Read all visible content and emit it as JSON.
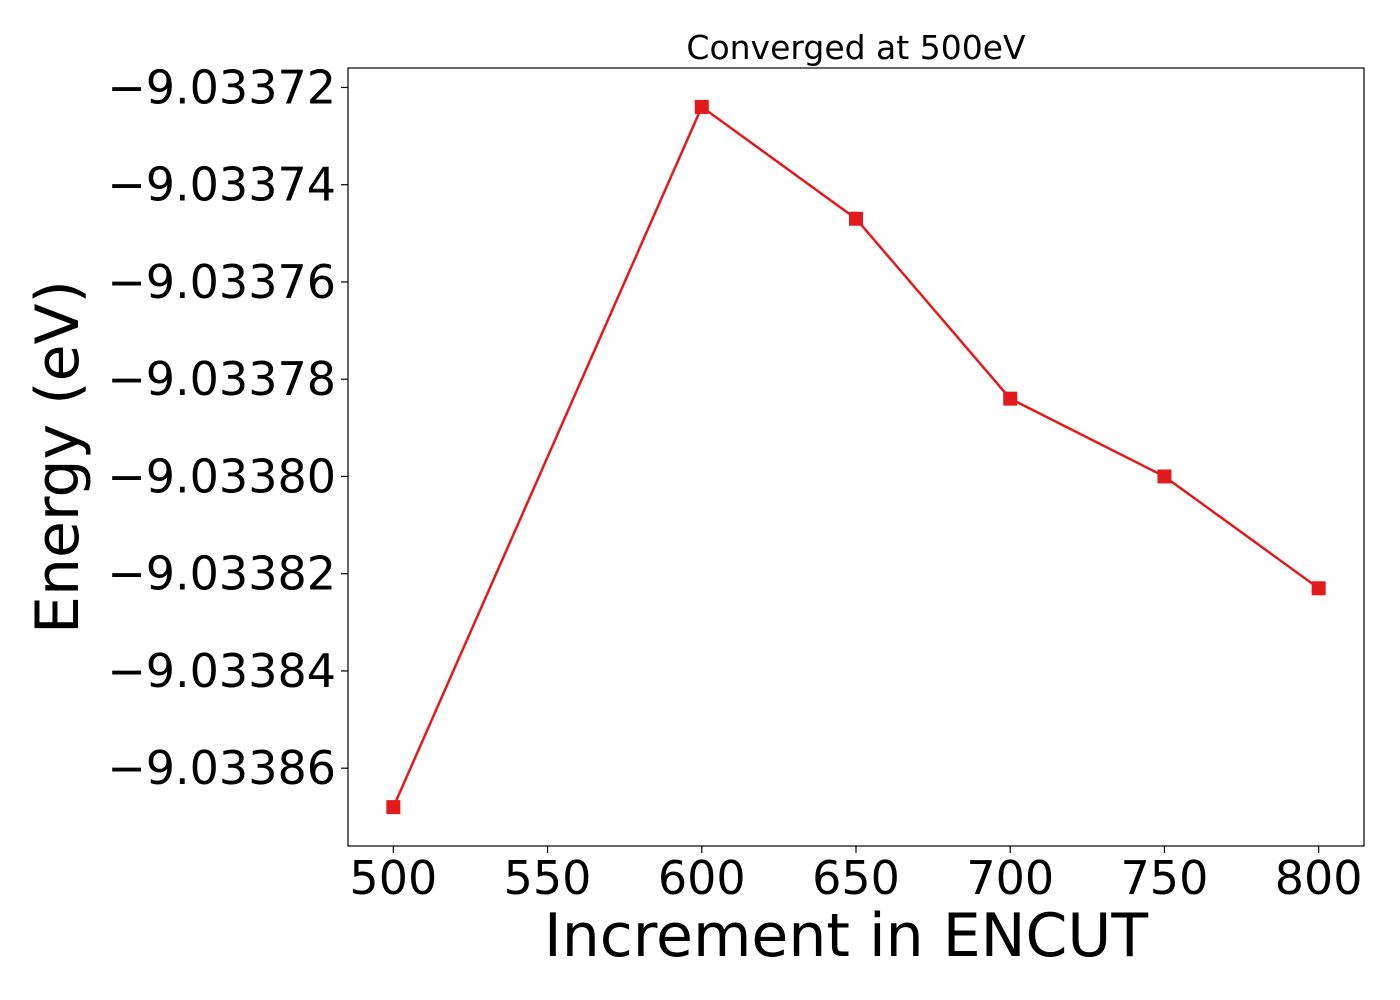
{
  "chart_data": {
    "type": "line",
    "title": "Converged at 500eV",
    "xlabel": "Increment in ENCUT",
    "ylabel": "Energy (eV)",
    "x": [
      500,
      600,
      650,
      700,
      750,
      800
    ],
    "series": [
      {
        "values": [
          -9.033868,
          -9.033724,
          -9.033747,
          -9.033784,
          -9.0338,
          -9.033823
        ],
        "color": "#e31a1c",
        "marker": "square"
      }
    ],
    "xticks": [
      500,
      550,
      600,
      650,
      700,
      750,
      800
    ],
    "xtick_labels": [
      "500",
      "550",
      "600",
      "650",
      "700",
      "750",
      "800"
    ],
    "yticks": [
      -9.03386,
      -9.03384,
      -9.03382,
      -9.0338,
      -9.03378,
      -9.03376,
      -9.03374,
      -9.03372
    ],
    "ytick_labels": [
      "−9.03386",
      "−9.03384",
      "−9.03382",
      "−9.03380",
      "−9.03378",
      "−9.03376",
      "−9.03374",
      "−9.03372"
    ],
    "xlim": [
      485.3,
      814.7
    ],
    "ylim": [
      -9.033876,
      -9.033716
    ],
    "grid": false,
    "legend": false
  }
}
